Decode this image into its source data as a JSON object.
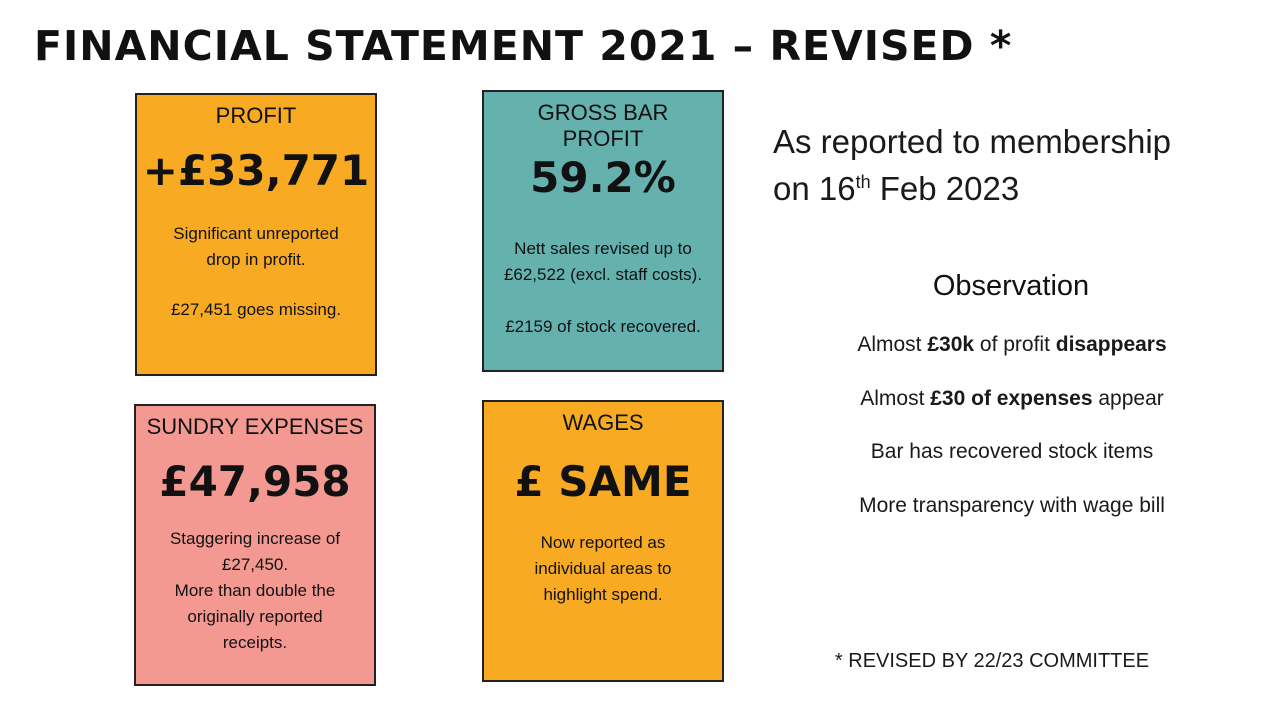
{
  "title": "FINANCIAL STATEMENT 2021 – REVISED *",
  "cards": {
    "profit": {
      "head": "PROFIT",
      "value": "+£33,771",
      "desc1": "Significant unreported drop in profit.",
      "desc2": "£27,451 goes missing.",
      "color": "#f8ab22"
    },
    "gross": {
      "head": "GROSS BAR PROFIT",
      "value": "59.2%",
      "desc1": "Nett sales revised up to £62,522 (excl. staff costs).",
      "desc2": "£2159 of stock recovered.",
      "color": "#65b1ae"
    },
    "sundry": {
      "head": "SUNDRY EXPENSES",
      "value": "£47,958",
      "desc1": "Staggering increase of £27,450.",
      "desc2": "More than double the originally reported receipts.",
      "color": "#f39992"
    },
    "wages": {
      "head": "WAGES",
      "value": "£ SAME",
      "desc1": "Now reported as individual areas to highlight spend.",
      "color": "#f8ab22"
    }
  },
  "reported": {
    "line1": "As reported to membership",
    "line2_pre": "on 16",
    "line2_sup": "th",
    "line2_post": " Feb 2023"
  },
  "observation": {
    "title": "Observation",
    "items": [
      {
        "a": "Almost ",
        "b": "£30k",
        "c": " of profit ",
        "d": "disappears"
      },
      {
        "a": "Almost ",
        "b": "£30 of expenses",
        "c": " appear"
      },
      {
        "a": "Bar has recovered stock items"
      },
      {
        "a": "More transparency with wage bill"
      }
    ]
  },
  "footnote": "* REVISED BY 22/23 COMMITTEE"
}
